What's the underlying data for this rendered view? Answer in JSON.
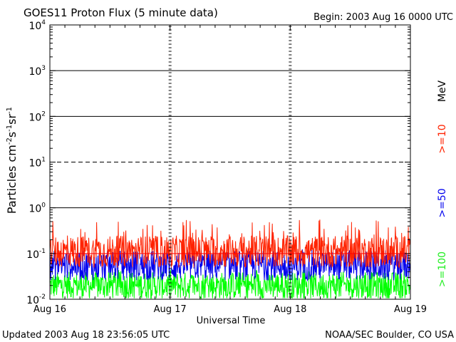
{
  "chart_data": {
    "type": "line",
    "title": "GOES11 Proton Flux (5 minute data)",
    "begin_label": "Begin: 2003 Aug 16 0000 UTC",
    "ylabel_base": "Particles cm",
    "ylabel_exp1": "-2",
    "ylabel_s": "s",
    "ylabel_exp2": "-1",
    "ylabel_sr": "sr",
    "ylabel_exp3": "-1",
    "xlabel": "Universal Time",
    "yscale": "log",
    "ylim": [
      0.01,
      10000
    ],
    "y_ticks": [
      {
        "base": "10",
        "exp": "-2"
      },
      {
        "base": "10",
        "exp": "-1"
      },
      {
        "base": "10",
        "exp": "0"
      },
      {
        "base": "10",
        "exp": "1"
      },
      {
        "base": "10",
        "exp": "2"
      },
      {
        "base": "10",
        "exp": "3"
      },
      {
        "base": "10",
        "exp": "4"
      }
    ],
    "x_ticks": [
      "Aug 16",
      "Aug 17",
      "Aug 18",
      "Aug 19"
    ],
    "xlim_days": [
      0,
      3
    ],
    "threshold_lines": [
      {
        "value": 0.1,
        "color": "#ff0000",
        "style": "solid"
      },
      {
        "value": 1,
        "color": "#000000",
        "style": "solid"
      },
      {
        "value": 10,
        "color": "#000000",
        "style": "dashed"
      },
      {
        "value": 100,
        "color": "#000000",
        "style": "solid"
      },
      {
        "value": 1000,
        "color": "#000000",
        "style": "solid"
      }
    ],
    "legend_unit": "MeV",
    "series": [
      {
        "name": ">=10",
        "color": "#ff2200",
        "baseline": 0.11,
        "spread": 0.35,
        "spike_max": 0.55
      },
      {
        "name": ">=50",
        "color": "#0000ee",
        "baseline": 0.055,
        "spread": 0.33,
        "spike_max": 0.13
      },
      {
        "name": ">=100",
        "color": "#00ff00",
        "baseline": 0.02,
        "spread": 0.3,
        "spike_max": 0.045
      }
    ],
    "updated": "Updated 2003 Aug 18 23:56:05 UTC",
    "source": "NOAA/SEC Boulder, CO USA"
  }
}
